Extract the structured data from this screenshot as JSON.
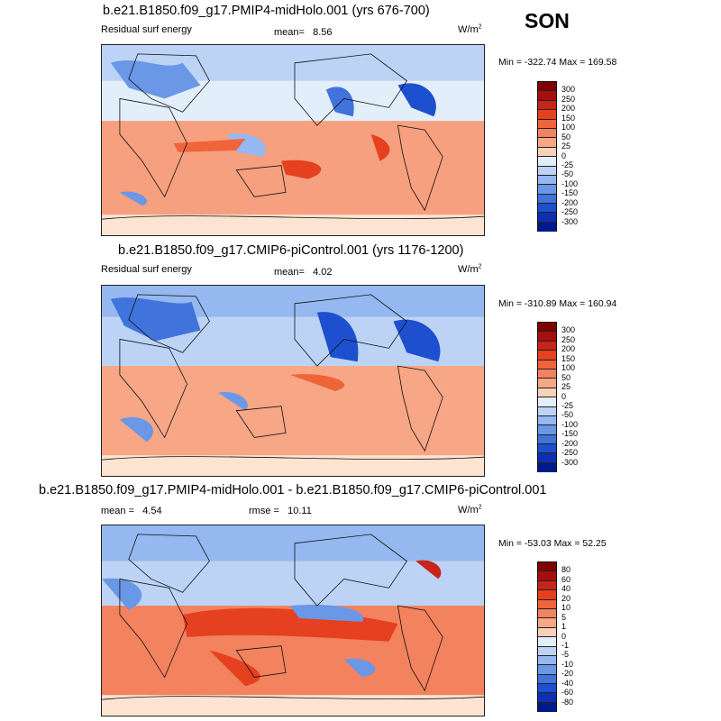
{
  "season": "SON",
  "colors": {
    "c1": [
      "#7f0000",
      "#a50f0f",
      "#c8241a",
      "#e5401f",
      "#f0643a",
      "#f3825f",
      "#f7a686",
      "#fad0b8",
      "#fde3d2",
      "#e3eefb",
      "#bcd3f5",
      "#94b8ef",
      "#6a97e6",
      "#4074dc",
      "#1d4fcf",
      "#0e2fb3",
      "#001a8c"
    ],
    "land": "#fde4d2"
  },
  "panels": [
    {
      "title": "b.e21.B1850.f09_g17.PMIP4-midHolo.001 (yrs 676-700)",
      "variable": "Residual surf energy",
      "mean_label": "mean=",
      "mean_value": "8.56",
      "units": "W/m",
      "units_sup": "2",
      "minmax": "Min = -322.74 Max = 169.58",
      "colorbar_labels": [
        "300",
        "250",
        "200",
        "150",
        "100",
        "50",
        "25",
        "0",
        "-25",
        "-50",
        "-100",
        "-150",
        "-200",
        "-250",
        "-300"
      ]
    },
    {
      "title": "b.e21.B1850.f09_g17.CMIP6-piControl.001 (yrs 1176-1200)",
      "variable": "Residual surf energy",
      "mean_label": "mean=",
      "mean_value": "4.02",
      "units": "W/m",
      "units_sup": "2",
      "minmax": "Min = -310.89 Max = 160.94",
      "colorbar_labels": [
        "300",
        "250",
        "200",
        "150",
        "100",
        "50",
        "25",
        "0",
        "-25",
        "-50",
        "-100",
        "-150",
        "-200",
        "-250",
        "-300"
      ]
    },
    {
      "title": "b.e21.B1850.f09_g17.PMIP4-midHolo.001 - b.e21.B1850.f09_g17.CMIP6-piControl.001",
      "mean_label": "mean =",
      "mean_value": "4.54",
      "rmse_label": "rmse =",
      "rmse_value": "10.11",
      "units": "W/m",
      "units_sup": "2",
      "minmax": "Min = -53.03 Max =  52.25",
      "colorbar_labels": [
        "80",
        "60",
        "40",
        "20",
        "10",
        "5",
        "1",
        "0",
        "-1",
        "-5",
        "-10",
        "-20",
        "-40",
        "-60",
        "-80"
      ]
    }
  ]
}
